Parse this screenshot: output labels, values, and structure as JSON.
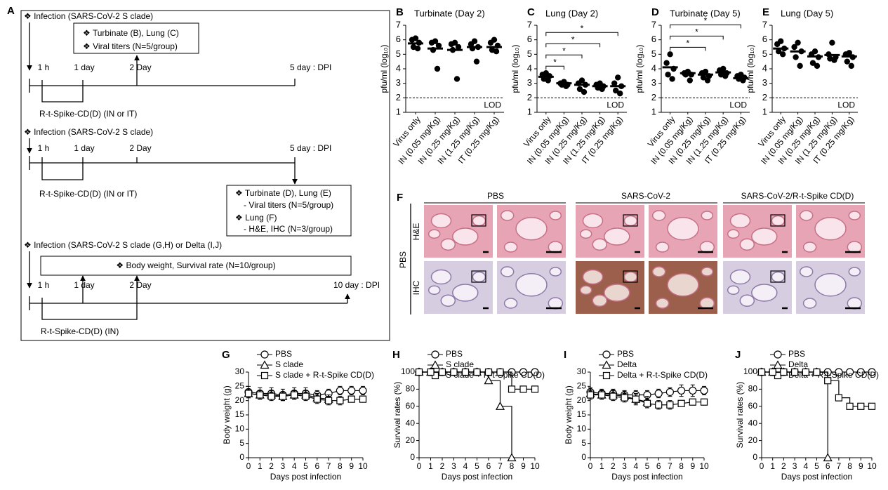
{
  "diagram": {
    "panel": "A",
    "blocks": [
      {
        "infection": "❖ Infection  (SARS-CoV-2  S clade)",
        "box": [
          "❖ Turbinate  (B), Lung  (C)",
          "❖ Viral titers (N=5/group)"
        ],
        "times": [
          "1 h",
          "1 day",
          "2 Day",
          "5 day : DPI"
        ],
        "treatment": "R-t-Spike-CD(D)  (IN  or IT)"
      },
      {
        "infection": "❖ Infection  (SARS-CoV-2  S clade)",
        "box": [
          "❖ Turbinate  (D), Lung  (E)",
          "- Viral titers (N=5/group)",
          "❖ Lung (F)",
          "- H&E, IHC (N=3/group)"
        ],
        "times": [
          "1 h",
          "1 day",
          "2 Day",
          "5 day : DPI"
        ],
        "treatment": "R-t-Spike-CD(D)  (IN  or IT)"
      },
      {
        "infection": "❖ Infection  (SARS-CoV-2  S clade (G,H) or Delta (I,J)",
        "box": [
          "❖ Body weight, Survival  rate (N=10/group)"
        ],
        "times": [
          "1 h",
          "1 day",
          "2 Day",
          "10 day : DPI"
        ],
        "treatment": "R-t-Spike-CD(D)  (IN)"
      }
    ]
  },
  "histology": {
    "panel": "F",
    "group_label": "PBS",
    "columns": [
      "PBS",
      "SARS-CoV-2",
      "SARS-CoV-2/R-t-Spike  CD(D)"
    ],
    "rows": [
      "H&E",
      "IHC"
    ]
  },
  "chart_data": [
    {
      "type": "dot",
      "panel": "B",
      "title": "Turbinate  (Day 2)",
      "y_label": "pfu/ml (log₁₀)",
      "color": "#000000",
      "categories": [
        "Virus only",
        "IN (0.05 mg/Kg)",
        "IN (0.25 mg/Kg)",
        "IN (1.25 mg/Kg)",
        "IT (0.25 mg/Kg)"
      ],
      "points": [
        [
          6.1,
          6.0,
          5.8,
          5.5,
          5.4
        ],
        [
          5.9,
          5.8,
          5.6,
          5.3,
          4.0
        ],
        [
          5.8,
          5.7,
          5.5,
          5.3,
          3.3
        ],
        [
          5.9,
          5.7,
          5.5,
          5.4,
          4.5
        ],
        [
          6.0,
          5.8,
          5.6,
          5.3,
          5.2
        ]
      ],
      "means": [
        5.75,
        5.4,
        5.3,
        5.5,
        5.5
      ],
      "ylim": [
        1,
        7
      ],
      "yticks": [
        1,
        2,
        3,
        4,
        5,
        6,
        7
      ],
      "lod": 2,
      "lod_label": "LOD",
      "significance": []
    },
    {
      "type": "dot",
      "panel": "C",
      "title": "Lung (Day 2)",
      "y_label": "pfu/ml (log₁₀)",
      "color": "#000000",
      "categories": [
        "Virus only",
        "IN (0.05 mg/Kg)",
        "IN (0.25 mg/Kg)",
        "IN (1.25 mg/Kg)",
        "IT (0.25 mg/Kg)"
      ],
      "points": [
        [
          3.7,
          3.6,
          3.5,
          3.3,
          3.2
        ],
        [
          3.1,
          3.0,
          2.9,
          2.9,
          2.8
        ],
        [
          3.2,
          3.0,
          2.9,
          2.6,
          2.4
        ],
        [
          3.0,
          2.9,
          2.8,
          2.7,
          2.6
        ],
        [
          3.4,
          3.0,
          2.8,
          2.5,
          2.3
        ]
      ],
      "means": [
        3.45,
        3.0,
        2.9,
        2.8,
        2.8
      ],
      "ylim": [
        1,
        7
      ],
      "yticks": [
        1,
        2,
        3,
        4,
        5,
        6,
        7
      ],
      "lod": 2,
      "lod_label": "LOD",
      "significance": [
        {
          "from": 0,
          "to": 1,
          "label": "*"
        },
        {
          "from": 0,
          "to": 2,
          "label": "*"
        },
        {
          "from": 0,
          "to": 3,
          "label": "*"
        },
        {
          "from": 0,
          "to": 4,
          "label": "*"
        }
      ]
    },
    {
      "type": "dot",
      "panel": "D",
      "title": "Turbinate  (Day 5)",
      "y_label": "pfu/ml (log₁₀)",
      "color": "#000000",
      "categories": [
        "Virus only",
        "IN (0.05 mg/Kg)",
        "IN (0.25 mg/Kg)",
        "IN (1.25 mg/Kg)",
        "IT (0.25 mg/Kg)"
      ],
      "points": [
        [
          5.0,
          4.4,
          4.0,
          3.6,
          3.3
        ],
        [
          3.8,
          3.7,
          3.6,
          3.6,
          3.2
        ],
        [
          3.8,
          3.7,
          3.5,
          3.4,
          3.2
        ],
        [
          4.0,
          3.9,
          3.7,
          3.6,
          3.5
        ],
        [
          3.6,
          3.5,
          3.4,
          3.3,
          3.2
        ]
      ],
      "means": [
        4.1,
        3.7,
        3.6,
        3.75,
        3.35
      ],
      "ylim": [
        1,
        7
      ],
      "yticks": [
        1,
        2,
        3,
        4,
        5,
        6,
        7
      ],
      "lod": 2,
      "lod_label": "LOD",
      "significance": [
        {
          "from": 0,
          "to": 2,
          "label": "*"
        },
        {
          "from": 0,
          "to": 3,
          "label": "*"
        },
        {
          "from": 0,
          "to": 4,
          "label": "*"
        }
      ]
    },
    {
      "type": "dot",
      "panel": "E",
      "title": "Lung (Day 5)",
      "y_label": "pfu/ml (log₁₀)",
      "color": "#000000",
      "categories": [
        "Virus only",
        "IN (0.05 mg/Kg)",
        "IN (0.25 mg/Kg)",
        "IN (1.25 mg/Kg)",
        "IT (0.25 mg/Kg)"
      ],
      "points": [
        [
          5.9,
          5.7,
          5.4,
          5.2,
          5.0
        ],
        [
          5.8,
          5.5,
          5.2,
          4.8,
          4.2
        ],
        [
          5.2,
          5.0,
          4.8,
          4.4,
          4.2
        ],
        [
          5.8,
          5.0,
          4.8,
          4.7,
          4.6
        ],
        [
          5.1,
          5.0,
          4.8,
          4.5,
          4.2
        ]
      ],
      "means": [
        5.4,
        5.2,
        4.85,
        4.95,
        4.85
      ],
      "ylim": [
        1,
        7
      ],
      "yticks": [
        1,
        2,
        3,
        4,
        5,
        6,
        7
      ],
      "lod": 2,
      "lod_label": "LOD",
      "significance": []
    },
    {
      "type": "line",
      "panel": "G",
      "y_label": "Body weight (g)",
      "x_label": "Days post infection",
      "step": false,
      "x": [
        0,
        1,
        2,
        3,
        4,
        5,
        6,
        7,
        8,
        9,
        10
      ],
      "xlim": [
        0,
        10
      ],
      "xticks": [
        0,
        1,
        2,
        3,
        4,
        5,
        6,
        7,
        8,
        9,
        10
      ],
      "ylim": [
        0,
        30
      ],
      "yticks": [
        0,
        5,
        10,
        15,
        20,
        25,
        30
      ],
      "legend": "top-left",
      "series": [
        {
          "name": "PBS",
          "marker": "circle",
          "color": "#000000",
          "values": [
            23,
            22.5,
            22.5,
            22,
            22.5,
            22.5,
            22,
            22.5,
            23.5,
            23.5,
            23.5
          ],
          "errors": [
            2,
            2,
            2,
            2,
            2,
            2,
            1.5,
            1.5,
            1.5,
            1.5,
            1.5
          ]
        },
        {
          "name": "S clade",
          "marker": "triangle",
          "color": "#000000",
          "values": [
            22.5,
            22,
            22,
            21.5,
            22,
            22,
            21,
            20.5,
            null,
            null,
            null
          ],
          "errors": [
            1.5,
            1.5,
            1.5,
            1.5,
            1.5,
            1.5,
            1.5,
            1.5,
            null,
            null,
            null
          ]
        },
        {
          "name": "S clade  + R-t-Spike CD(D)",
          "marker": "square",
          "color": "#000000",
          "values": [
            22.5,
            22,
            21.5,
            21.5,
            22,
            21.5,
            20.5,
            20,
            20,
            20.5,
            20.5
          ],
          "errors": [
            1.5,
            1.5,
            1.5,
            1.5,
            1.5,
            1.5,
            1.5,
            1.5,
            1.5,
            1,
            1
          ]
        }
      ]
    },
    {
      "type": "line",
      "panel": "H",
      "y_label": "Survival rates (%)",
      "x_label": "Days post infection",
      "step": true,
      "x": [
        0,
        1,
        2,
        3,
        4,
        5,
        6,
        7,
        8,
        9,
        10
      ],
      "xlim": [
        0,
        10
      ],
      "xticks": [
        0,
        1,
        2,
        3,
        4,
        5,
        6,
        7,
        8,
        9,
        10
      ],
      "ylim": [
        0,
        100
      ],
      "yticks": [
        0,
        20,
        40,
        60,
        80,
        100
      ],
      "legend": "top-left",
      "series": [
        {
          "name": "PBS",
          "marker": "circle",
          "color": "#000000",
          "values": [
            100,
            100,
            100,
            100,
            100,
            100,
            100,
            100,
            100,
            100,
            100
          ]
        },
        {
          "name": "S clade",
          "marker": "triangle",
          "color": "#000000",
          "values": [
            100,
            100,
            100,
            100,
            100,
            100,
            90,
            60,
            0,
            null,
            null
          ]
        },
        {
          "name": "S clade + R-t-Spike CD(D)",
          "marker": "square",
          "color": "#000000",
          "values": [
            100,
            100,
            100,
            100,
            100,
            100,
            100,
            100,
            80,
            80,
            80
          ]
        }
      ]
    },
    {
      "type": "line",
      "panel": "I",
      "y_label": "Body weight (g)",
      "x_label": "Days post infection",
      "step": false,
      "x": [
        0,
        1,
        2,
        3,
        4,
        5,
        6,
        7,
        8,
        9,
        10
      ],
      "xlim": [
        0,
        10
      ],
      "xticks": [
        0,
        1,
        2,
        3,
        4,
        5,
        6,
        7,
        8,
        9,
        10
      ],
      "ylim": [
        0,
        30
      ],
      "yticks": [
        0,
        5,
        10,
        15,
        20,
        25,
        30
      ],
      "legend": "top-left",
      "series": [
        {
          "name": "PBS",
          "marker": "circle",
          "color": "#000000",
          "values": [
            23,
            22.5,
            22.5,
            22,
            22,
            22,
            22.5,
            23,
            23.5,
            23.5,
            23.5
          ],
          "errors": [
            1.5,
            1.5,
            1.5,
            1.5,
            1.5,
            1.5,
            1.5,
            1.5,
            2,
            2,
            1.5
          ]
        },
        {
          "name": "Delta",
          "marker": "triangle",
          "color": "#000000",
          "values": [
            22.5,
            22,
            22,
            21.5,
            20.5,
            19.5,
            null,
            null,
            null,
            null,
            null
          ],
          "errors": [
            1.5,
            1.5,
            1.5,
            1.5,
            2,
            2,
            null,
            null,
            null,
            null,
            null
          ]
        },
        {
          "name": "Delta + R-t-Spike CD(D)",
          "marker": "square",
          "color": "#000000",
          "values": [
            22,
            22,
            21.5,
            21,
            20.5,
            19,
            18.5,
            18.5,
            19,
            19.5,
            19.5
          ],
          "errors": [
            1.5,
            1.5,
            1.5,
            1.5,
            1.5,
            1.5,
            1.5,
            1.5,
            1,
            1,
            1
          ]
        }
      ]
    },
    {
      "type": "line",
      "panel": "J",
      "y_label": "Survival rates (%)",
      "x_label": "Days post infection",
      "step": true,
      "x": [
        0,
        1,
        2,
        3,
        4,
        5,
        6,
        7,
        8,
        9,
        10
      ],
      "xlim": [
        0,
        10
      ],
      "xticks": [
        0,
        1,
        2,
        3,
        4,
        5,
        6,
        7,
        8,
        9,
        10
      ],
      "ylim": [
        0,
        100
      ],
      "yticks": [
        0,
        20,
        40,
        60,
        80,
        100
      ],
      "legend": "top-left",
      "series": [
        {
          "name": "PBS",
          "marker": "circle",
          "color": "#000000",
          "values": [
            100,
            100,
            100,
            100,
            100,
            100,
            100,
            100,
            100,
            100,
            100
          ]
        },
        {
          "name": "Delta",
          "marker": "triangle",
          "color": "#000000",
          "values": [
            100,
            100,
            100,
            100,
            100,
            100,
            0,
            null,
            null,
            null,
            null
          ]
        },
        {
          "name": "Delta + R-t-Spike CD(D)",
          "marker": "square",
          "color": "#000000",
          "values": [
            100,
            100,
            100,
            100,
            100,
            100,
            90,
            70,
            60,
            60,
            60
          ]
        }
      ]
    }
  ]
}
